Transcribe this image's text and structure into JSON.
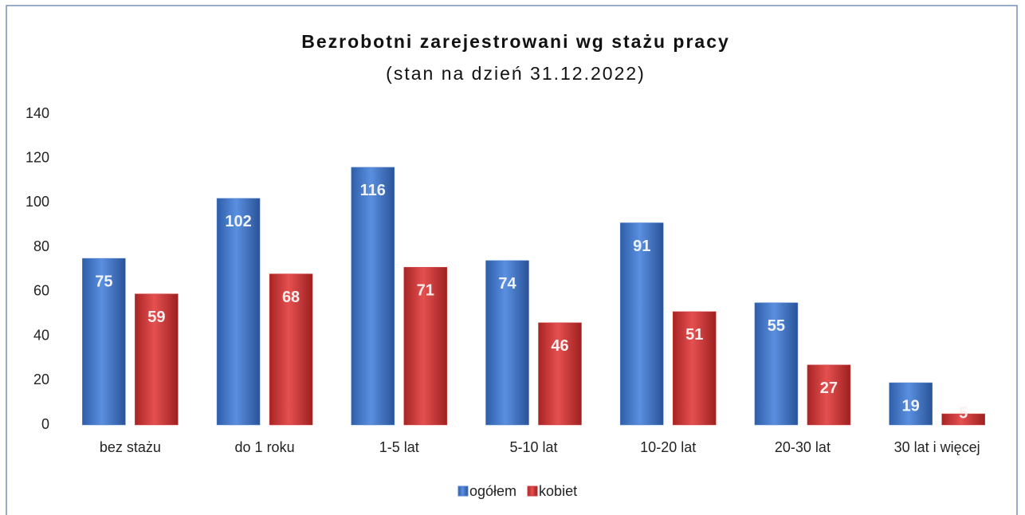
{
  "chart_data": {
    "type": "bar",
    "title": "Bezrobotni zarejestrowani wg stażu pracy",
    "subtitle": "(stan na dzień 31.12.2022)",
    "categories": [
      "bez stażu",
      "do 1 roku",
      "1-5 lat",
      "5-10 lat",
      "10-20 lat",
      "20-30 lat",
      "30 lat i więcej"
    ],
    "series": [
      {
        "name": "ogółem",
        "color": "#4a7fcf",
        "values": [
          75,
          102,
          116,
          74,
          91,
          55,
          19
        ]
      },
      {
        "name": "kobiet",
        "color": "#d33b3b",
        "values": [
          59,
          68,
          71,
          46,
          51,
          27,
          5
        ]
      }
    ],
    "ylim": [
      0,
      140
    ],
    "yticks": [
      0,
      20,
      40,
      60,
      80,
      100,
      120,
      140
    ],
    "grid": false,
    "legend": "bottom"
  }
}
